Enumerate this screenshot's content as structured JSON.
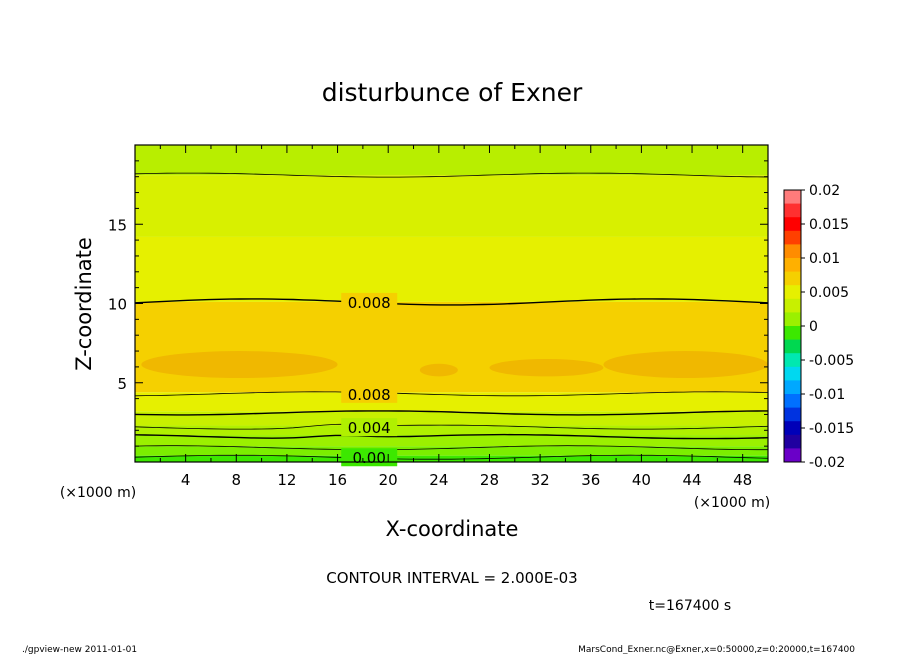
{
  "chart_data": {
    "type": "heatmap",
    "title": "disturbunce of Exner",
    "xlabel": "X-coordinate",
    "ylabel": "Z-coordinate",
    "x_unit": "(×1000 m)",
    "y_unit": "(×1000 m)",
    "xlim": [
      0,
      50
    ],
    "ylim": [
      0,
      20
    ],
    "x_ticks": [
      "4",
      "8",
      "12",
      "16",
      "20",
      "24",
      "28",
      "32",
      "36",
      "40",
      "44",
      "48"
    ],
    "y_ticks": [
      "5",
      "10",
      "15"
    ],
    "colorbar": {
      "ticks": [
        "0.02",
        "0.015",
        "0.01",
        "0.005",
        "0",
        "-0.005",
        "-0.01",
        "-0.015",
        "-0.02"
      ],
      "colors": [
        "#ff7b7b",
        "#ff3030",
        "#ff0000",
        "#ff4000",
        "#ff8c00",
        "#ffb000",
        "#f5d000",
        "#e6f000",
        "#c8f000",
        "#9bf000",
        "#3ce800",
        "#00d850",
        "#00e8b0",
        "#00d8f0",
        "#00a8ff",
        "#0070ff",
        "#0033e0",
        "#0000b8",
        "#2000a0",
        "#6a00c8"
      ]
    },
    "contour_interval": "CONTOUR INTERVAL = 2.000E-03",
    "contour_labels": [
      "0.008",
      "0.008",
      "0.004",
      "0.00"
    ],
    "contour_z": [
      0.3,
      0.9,
      1.6,
      2.2,
      3.1,
      4.3,
      10.1,
      18.1
    ],
    "bands": [
      {
        "z0": 0.0,
        "z1": 0.4,
        "color": "#3ce800"
      },
      {
        "z0": 0.4,
        "z1": 1.0,
        "color": "#7cee00"
      },
      {
        "z0": 1.0,
        "z1": 1.7,
        "color": "#9bf000"
      },
      {
        "z0": 1.7,
        "z1": 2.3,
        "color": "#b0f000"
      },
      {
        "z0": 2.3,
        "z1": 3.2,
        "color": "#c8f000"
      },
      {
        "z0": 3.2,
        "z1": 4.4,
        "color": "#e6f000"
      },
      {
        "z0": 4.4,
        "z1": 10.1,
        "color": "#f5d000"
      },
      {
        "z0": 10.1,
        "z1": 14.2,
        "color": "#e6f000"
      },
      {
        "z0": 14.2,
        "z1": 18.1,
        "color": "#d8f000"
      },
      {
        "z0": 18.1,
        "z1": 20.0,
        "color": "#b8ee00"
      }
    ],
    "patches": [
      {
        "x0": 0.5,
        "x1": 16.0,
        "z0": 5.3,
        "z1": 7.0,
        "color": "#f0b800"
      },
      {
        "x0": 37.0,
        "x1": 50.0,
        "z0": 5.3,
        "z1": 7.0,
        "color": "#f0b800"
      },
      {
        "x0": 22.5,
        "x1": 25.5,
        "z0": 5.4,
        "z1": 6.2,
        "color": "#f0b800"
      },
      {
        "x0": 28.0,
        "x1": 37.0,
        "z0": 5.4,
        "z1": 6.5,
        "color": "#f0b800"
      }
    ]
  },
  "footer": {
    "time": "t=167400 s",
    "left": "./gpview-new   2011-01-01",
    "right": "MarsCond_Exner.nc@Exner,x=0:50000,z=0:20000,t=167400"
  }
}
